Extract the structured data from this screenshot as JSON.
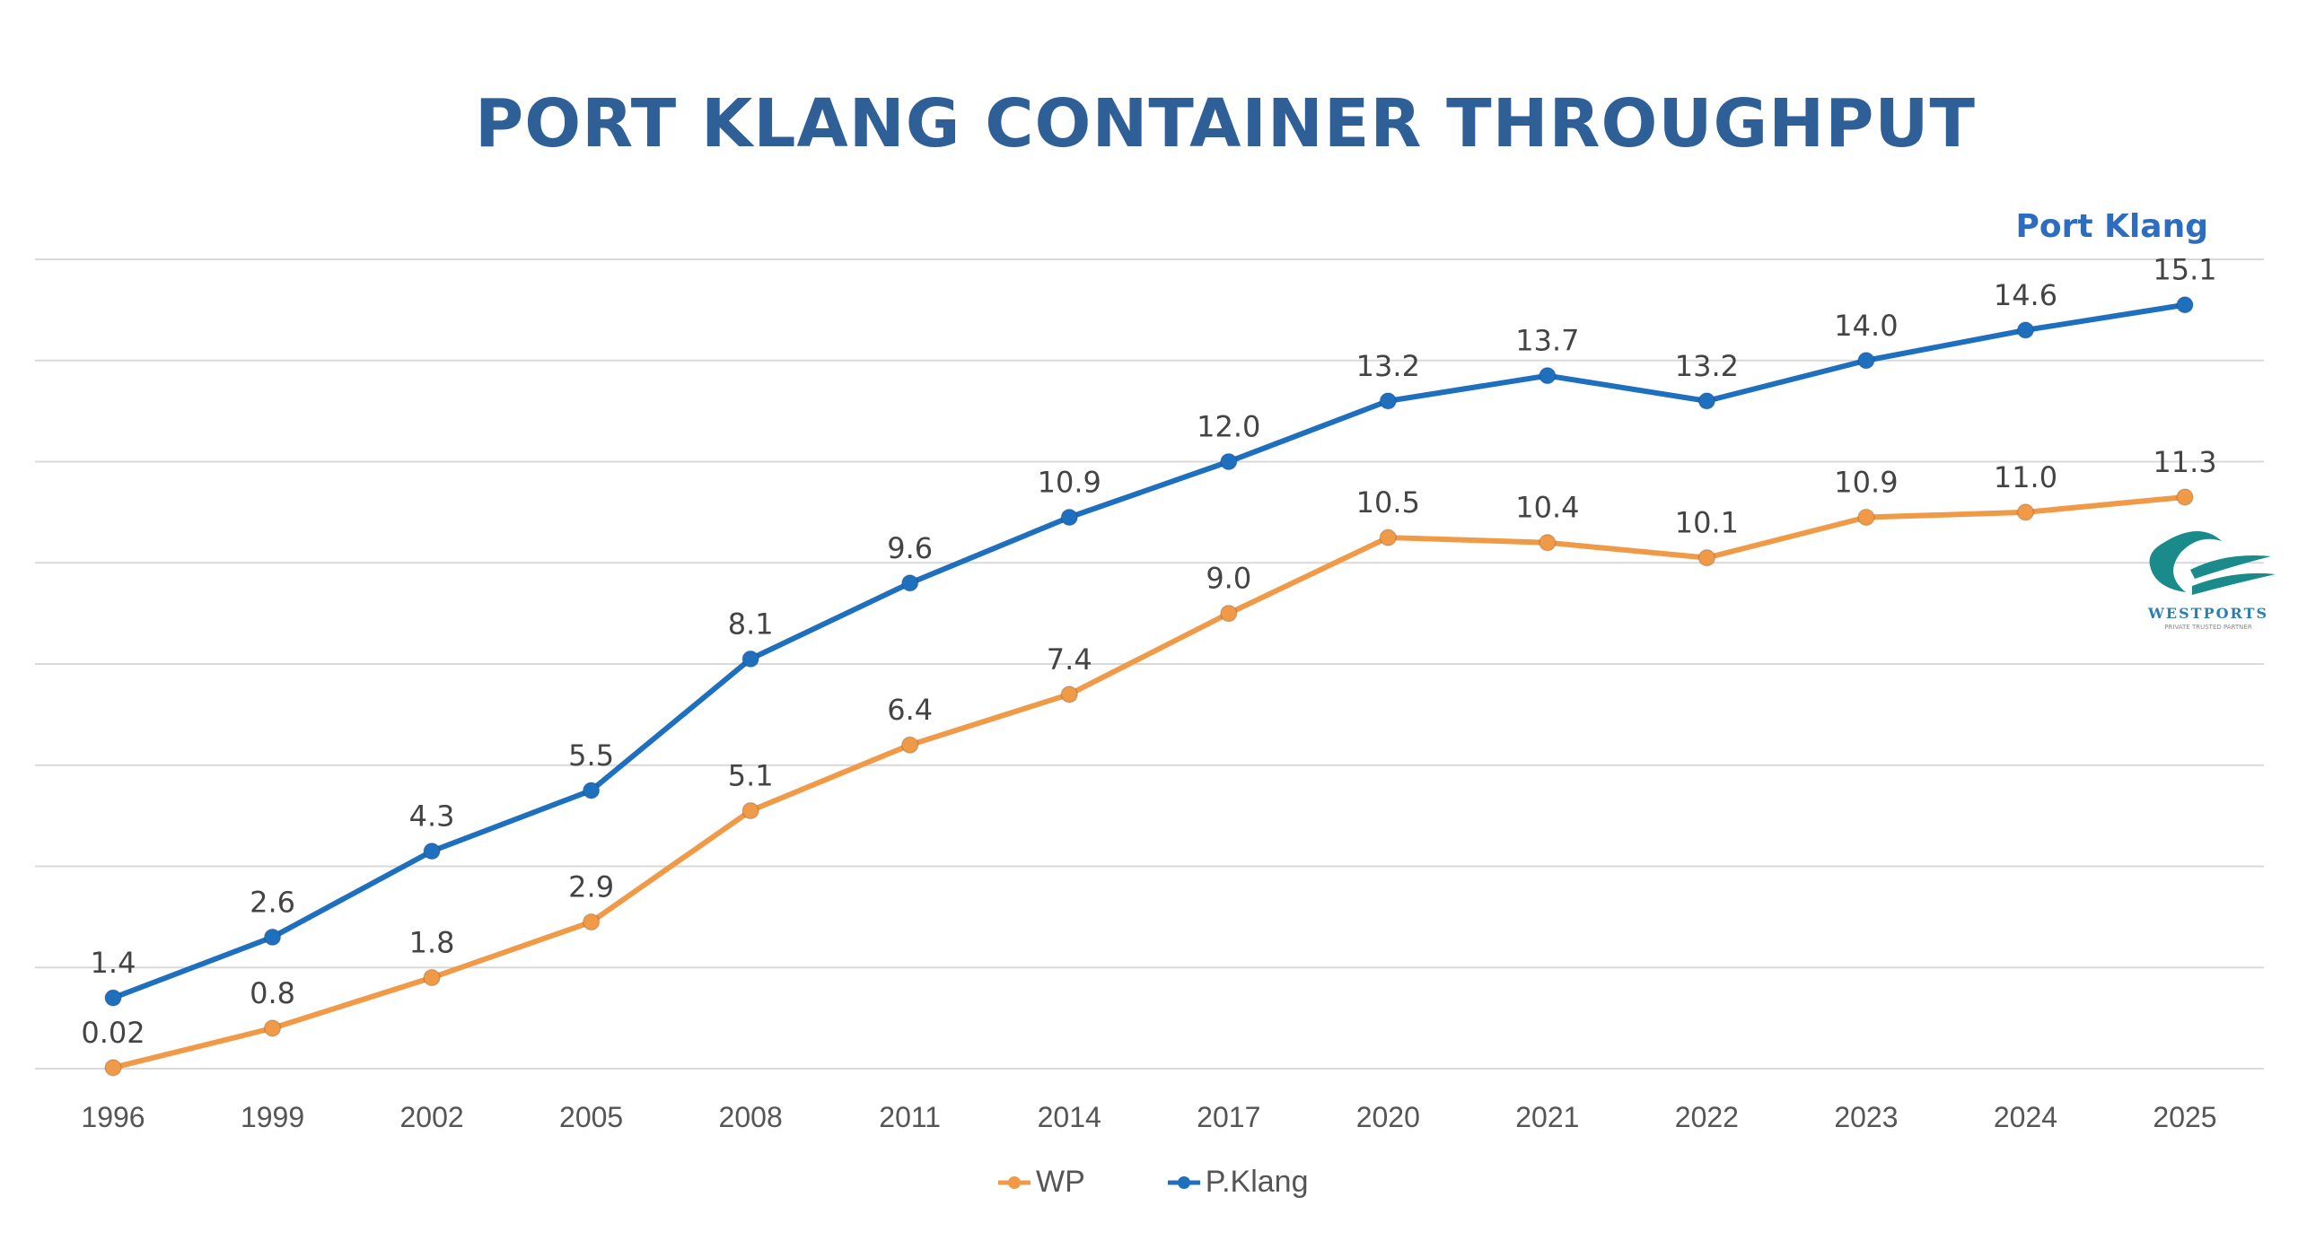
{
  "chart_data": {
    "type": "line",
    "title": "PORT KLANG CONTAINER THROUGHPUT",
    "annotation": "Port Klang",
    "categories": [
      "1996",
      "1999",
      "2002",
      "2005",
      "2008",
      "2011",
      "2014",
      "2017",
      "2020",
      "2021",
      "2022",
      "2023",
      "2024",
      "2025"
    ],
    "series": [
      {
        "name": "WP",
        "color": "#f09a48",
        "values": [
          0.02,
          0.8,
          1.8,
          2.9,
          5.1,
          6.4,
          7.4,
          9.0,
          10.5,
          10.4,
          10.1,
          10.9,
          11.0,
          11.3
        ],
        "labels": [
          "0.02",
          "0.8",
          "1.8",
          "2.9",
          "5.1",
          "6.4",
          "7.4",
          "9.0",
          "10.5",
          "10.4",
          "10.1",
          "10.9",
          "11.0",
          "11.3"
        ]
      },
      {
        "name": "P.Klang",
        "color": "#1f6fbf",
        "values": [
          1.4,
          2.6,
          4.3,
          5.5,
          8.1,
          9.6,
          10.9,
          12.0,
          13.2,
          13.7,
          13.2,
          14.0,
          14.6,
          15.1
        ],
        "labels": [
          "1.4",
          "2.6",
          "4.3",
          "5.5",
          "8.1",
          "9.6",
          "10.9",
          "12.0",
          "13.2",
          "13.7",
          "13.2",
          "14.0",
          "14.6",
          "15.1"
        ]
      }
    ],
    "ylim": [
      0,
      16
    ],
    "ygrid_step": 2,
    "y_tick_labels_shown": false,
    "grid": true,
    "legend_position": "bottom"
  },
  "logo": {
    "text": "WESTPORTS",
    "tagline": "PRIVATE TRUSTED PARTNER",
    "color": "#1a8a8a"
  }
}
